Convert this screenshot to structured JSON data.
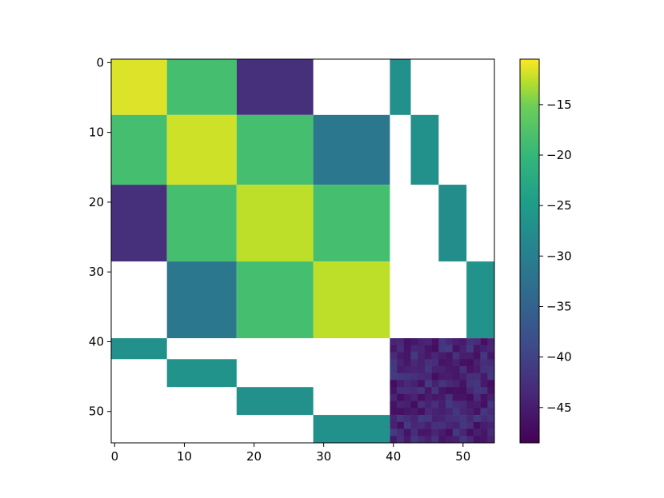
{
  "chart_data": {
    "type": "heatmap",
    "title": "",
    "xlabel": "",
    "ylabel": "",
    "xlim": [
      -0.5,
      54.5
    ],
    "ylim": [
      -0.5,
      54.5
    ],
    "y_inverted": true,
    "x_ticks": [
      "0",
      "10",
      "20",
      "30",
      "40",
      "50"
    ],
    "y_ticks": [
      "0",
      "10",
      "20",
      "30",
      "40",
      "50"
    ],
    "colormap": "viridis",
    "colorbar": {
      "range": [
        -48.5,
        -10.5
      ],
      "ticks": [
        "−15",
        "−20",
        "−25",
        "−30",
        "−35",
        "−40",
        "−45"
      ],
      "tick_values": [
        -15,
        -20,
        -25,
        -30,
        -35,
        -40,
        -45
      ]
    },
    "blank_color": "#ffffff",
    "blocks": [
      {
        "rows": [
          0,
          7
        ],
        "cols": [
          0,
          7
        ],
        "value": -11.5
      },
      {
        "rows": [
          0,
          7
        ],
        "cols": [
          8,
          17
        ],
        "value": -18.5
      },
      {
        "rows": [
          0,
          7
        ],
        "cols": [
          18,
          28
        ],
        "value": -42.5
      },
      {
        "rows": [
          0,
          7
        ],
        "cols": [
          40,
          42
        ],
        "value": -27
      },
      {
        "rows": [
          8,
          17
        ],
        "cols": [
          0,
          7
        ],
        "value": -18.5
      },
      {
        "rows": [
          8,
          17
        ],
        "cols": [
          8,
          17
        ],
        "value": -12
      },
      {
        "rows": [
          8,
          17
        ],
        "cols": [
          18,
          28
        ],
        "value": -18.5
      },
      {
        "rows": [
          8,
          17
        ],
        "cols": [
          29,
          39
        ],
        "value": -31.5
      },
      {
        "rows": [
          8,
          17
        ],
        "cols": [
          43,
          46
        ],
        "value": -27
      },
      {
        "rows": [
          18,
          28
        ],
        "cols": [
          0,
          7
        ],
        "value": -42.5
      },
      {
        "rows": [
          18,
          28
        ],
        "cols": [
          8,
          17
        ],
        "value": -18.5
      },
      {
        "rows": [
          18,
          28
        ],
        "cols": [
          18,
          28
        ],
        "value": -12.5
      },
      {
        "rows": [
          18,
          28
        ],
        "cols": [
          29,
          39
        ],
        "value": -18.5
      },
      {
        "rows": [
          18,
          28
        ],
        "cols": [
          47,
          50
        ],
        "value": -27.5
      },
      {
        "rows": [
          29,
          39
        ],
        "cols": [
          8,
          17
        ],
        "value": -31.5
      },
      {
        "rows": [
          29,
          39
        ],
        "cols": [
          18,
          28
        ],
        "value": -18.5
      },
      {
        "rows": [
          29,
          39
        ],
        "cols": [
          29,
          39
        ],
        "value": -12.5
      },
      {
        "rows": [
          29,
          39
        ],
        "cols": [
          51,
          54
        ],
        "value": -26.5
      },
      {
        "rows": [
          40,
          42
        ],
        "cols": [
          0,
          7
        ],
        "value": -27
      },
      {
        "rows": [
          43,
          46
        ],
        "cols": [
          8,
          17
        ],
        "value": -26.5
      },
      {
        "rows": [
          47,
          50
        ],
        "cols": [
          18,
          28
        ],
        "value": -27
      },
      {
        "rows": [
          51,
          54
        ],
        "cols": [
          29,
          39
        ],
        "value": -27
      },
      {
        "rows": [
          40,
          54
        ],
        "cols": [
          40,
          54
        ],
        "value": -44,
        "noisy": true
      }
    ]
  }
}
